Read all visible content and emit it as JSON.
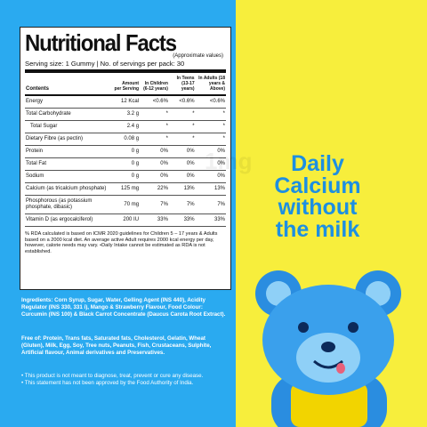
{
  "header": {
    "title": "Nutritional Facts",
    "subtitle": "(Approximate values)",
    "serving": "Serving size: 1 Gummy | No. of servings per pack: 30"
  },
  "table": {
    "columns": [
      "Contents",
      "Amount per Serving",
      "In Children (6-12 years)",
      "In Teens (13-17 years)",
      "In Adults (18 years & Above)"
    ],
    "rows": [
      [
        "Energy",
        "12 Kcal",
        "<0.6%",
        "<0.6%",
        "<0.6%"
      ],
      [
        "Total Carbohydrate",
        "3.2 g",
        "*",
        "*",
        "*"
      ],
      [
        "Total Sugar",
        "2.4 g",
        "*",
        "*",
        "*"
      ],
      [
        "Dietary Fibre (as pectin)",
        "0.08 g",
        "*",
        "*",
        "*"
      ],
      [
        "Protein",
        "0 g",
        "0%",
        "0%",
        "0%"
      ],
      [
        "Total Fat",
        "0 g",
        "0%",
        "0%",
        "0%"
      ],
      [
        "Sodium",
        "0 g",
        "0%",
        "0%",
        "0%"
      ],
      [
        "Calcium (as tricalcium phosphate)",
        "125 mg",
        "22%",
        "13%",
        "13%"
      ],
      [
        "Phosphorous (as potassium phosphate, dibasic)",
        "70 mg",
        "7%",
        "7%",
        "7%"
      ],
      [
        "Vitamin D (as ergocalciferol)",
        "200 IU",
        "33%",
        "33%",
        "33%"
      ]
    ]
  },
  "footnote": "% RDA calculated is based on ICMR 2020 guidelines for Children 5 – 17 years & Adults based on a 2000 kcal diet. An average active Adult requires 2000 kcal energy per day, however, calorie needs may vary. •Daily Intake cannot be estimated as RDA is not established.",
  "ingredients": "Ingredients: Corn Syrup, Sugar, Water, Gelling Agent (INS 440), Acidity Regulator (INS 330, 331 i), Mango & Strawberry Flavour, Food Colour: Curcumin (INS 100) & Black Carrot Concentrate (Daucus Carota Root Extract).",
  "free_of": "Free of: Protein, Trans fats, Saturated fats, Cholesterol, Gelatin, Wheat (Gluten), Milk, Egg, Soy, Tree nuts, Peanuts, Fish, Crustaceans, Sulphite, Artificial flavour, Animal derivatives and Preservatives.",
  "disclaimers": [
    "• This product is not meant to diagnose, treat, prevent or cure any disease.",
    "• This statement has not been approved by the Food Authority of India."
  ],
  "tagline": [
    "Daily",
    "Calcium",
    "without",
    "the milk"
  ],
  "watermark": "1mg"
}
